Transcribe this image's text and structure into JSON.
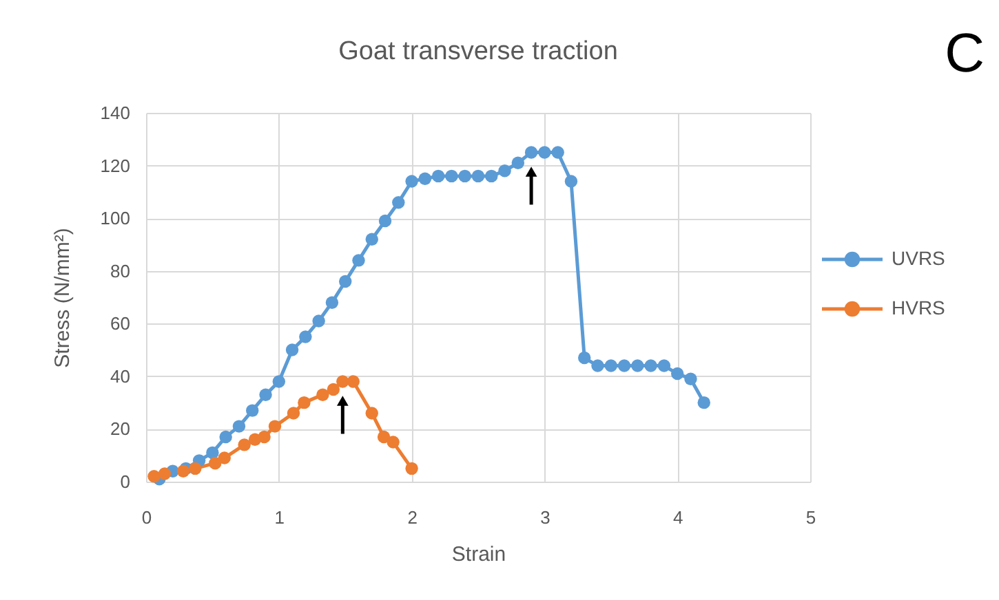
{
  "chart_data": {
    "type": "line",
    "title": "Goat transverse traction",
    "xlabel": "Strain",
    "ylabel": "Stress (N/mm²)",
    "xlim": [
      0,
      5
    ],
    "xticks": [
      0,
      1,
      2,
      3,
      4,
      5
    ],
    "ylim": [
      0,
      140
    ],
    "yticks": [
      0,
      20,
      40,
      60,
      80,
      100,
      120,
      140
    ],
    "grid": true,
    "legend": "right",
    "marker": "circle",
    "line_style": "solid",
    "annotations": [
      "C"
    ],
    "series": [
      {
        "name": "UVRS",
        "color": "#5b9bd5",
        "x": [
          0.1,
          0.2,
          0.3,
          0.4,
          0.5,
          0.6,
          0.7,
          0.8,
          0.9,
          1.0,
          1.1,
          1.2,
          1.3,
          1.4,
          1.5,
          1.6,
          1.7,
          1.8,
          1.9,
          2.0,
          2.1,
          2.2,
          2.3,
          2.4,
          2.5,
          2.6,
          2.7,
          2.8,
          2.9,
          3.0,
          3.1,
          3.2,
          3.3,
          3.4,
          3.5,
          3.6,
          3.7,
          3.8,
          3.9,
          4.0,
          4.1,
          4.2
        ],
        "values": [
          1,
          4,
          5,
          8,
          11,
          17,
          21,
          27,
          33,
          38,
          50,
          55,
          61,
          68,
          76,
          84,
          92,
          99,
          106,
          114,
          115,
          116,
          116,
          116,
          116,
          116,
          118,
          121,
          125,
          125,
          125,
          114,
          47,
          44,
          44,
          44,
          44,
          44,
          44,
          41,
          39,
          30
        ]
      },
      {
        "name": "HVRS",
        "color": "#ed7d31",
        "x": [
          0.06,
          0.14,
          0.28,
          0.37,
          0.52,
          0.59,
          0.74,
          0.82,
          0.89,
          0.97,
          1.11,
          1.19,
          1.33,
          1.41,
          1.48,
          1.56,
          1.7,
          1.79,
          1.86,
          2.0
        ],
        "values": [
          2,
          3,
          4,
          5,
          7,
          9,
          14,
          16,
          17,
          21,
          26,
          30,
          33,
          35,
          38,
          38,
          26,
          17,
          15,
          5
        ]
      }
    ]
  }
}
